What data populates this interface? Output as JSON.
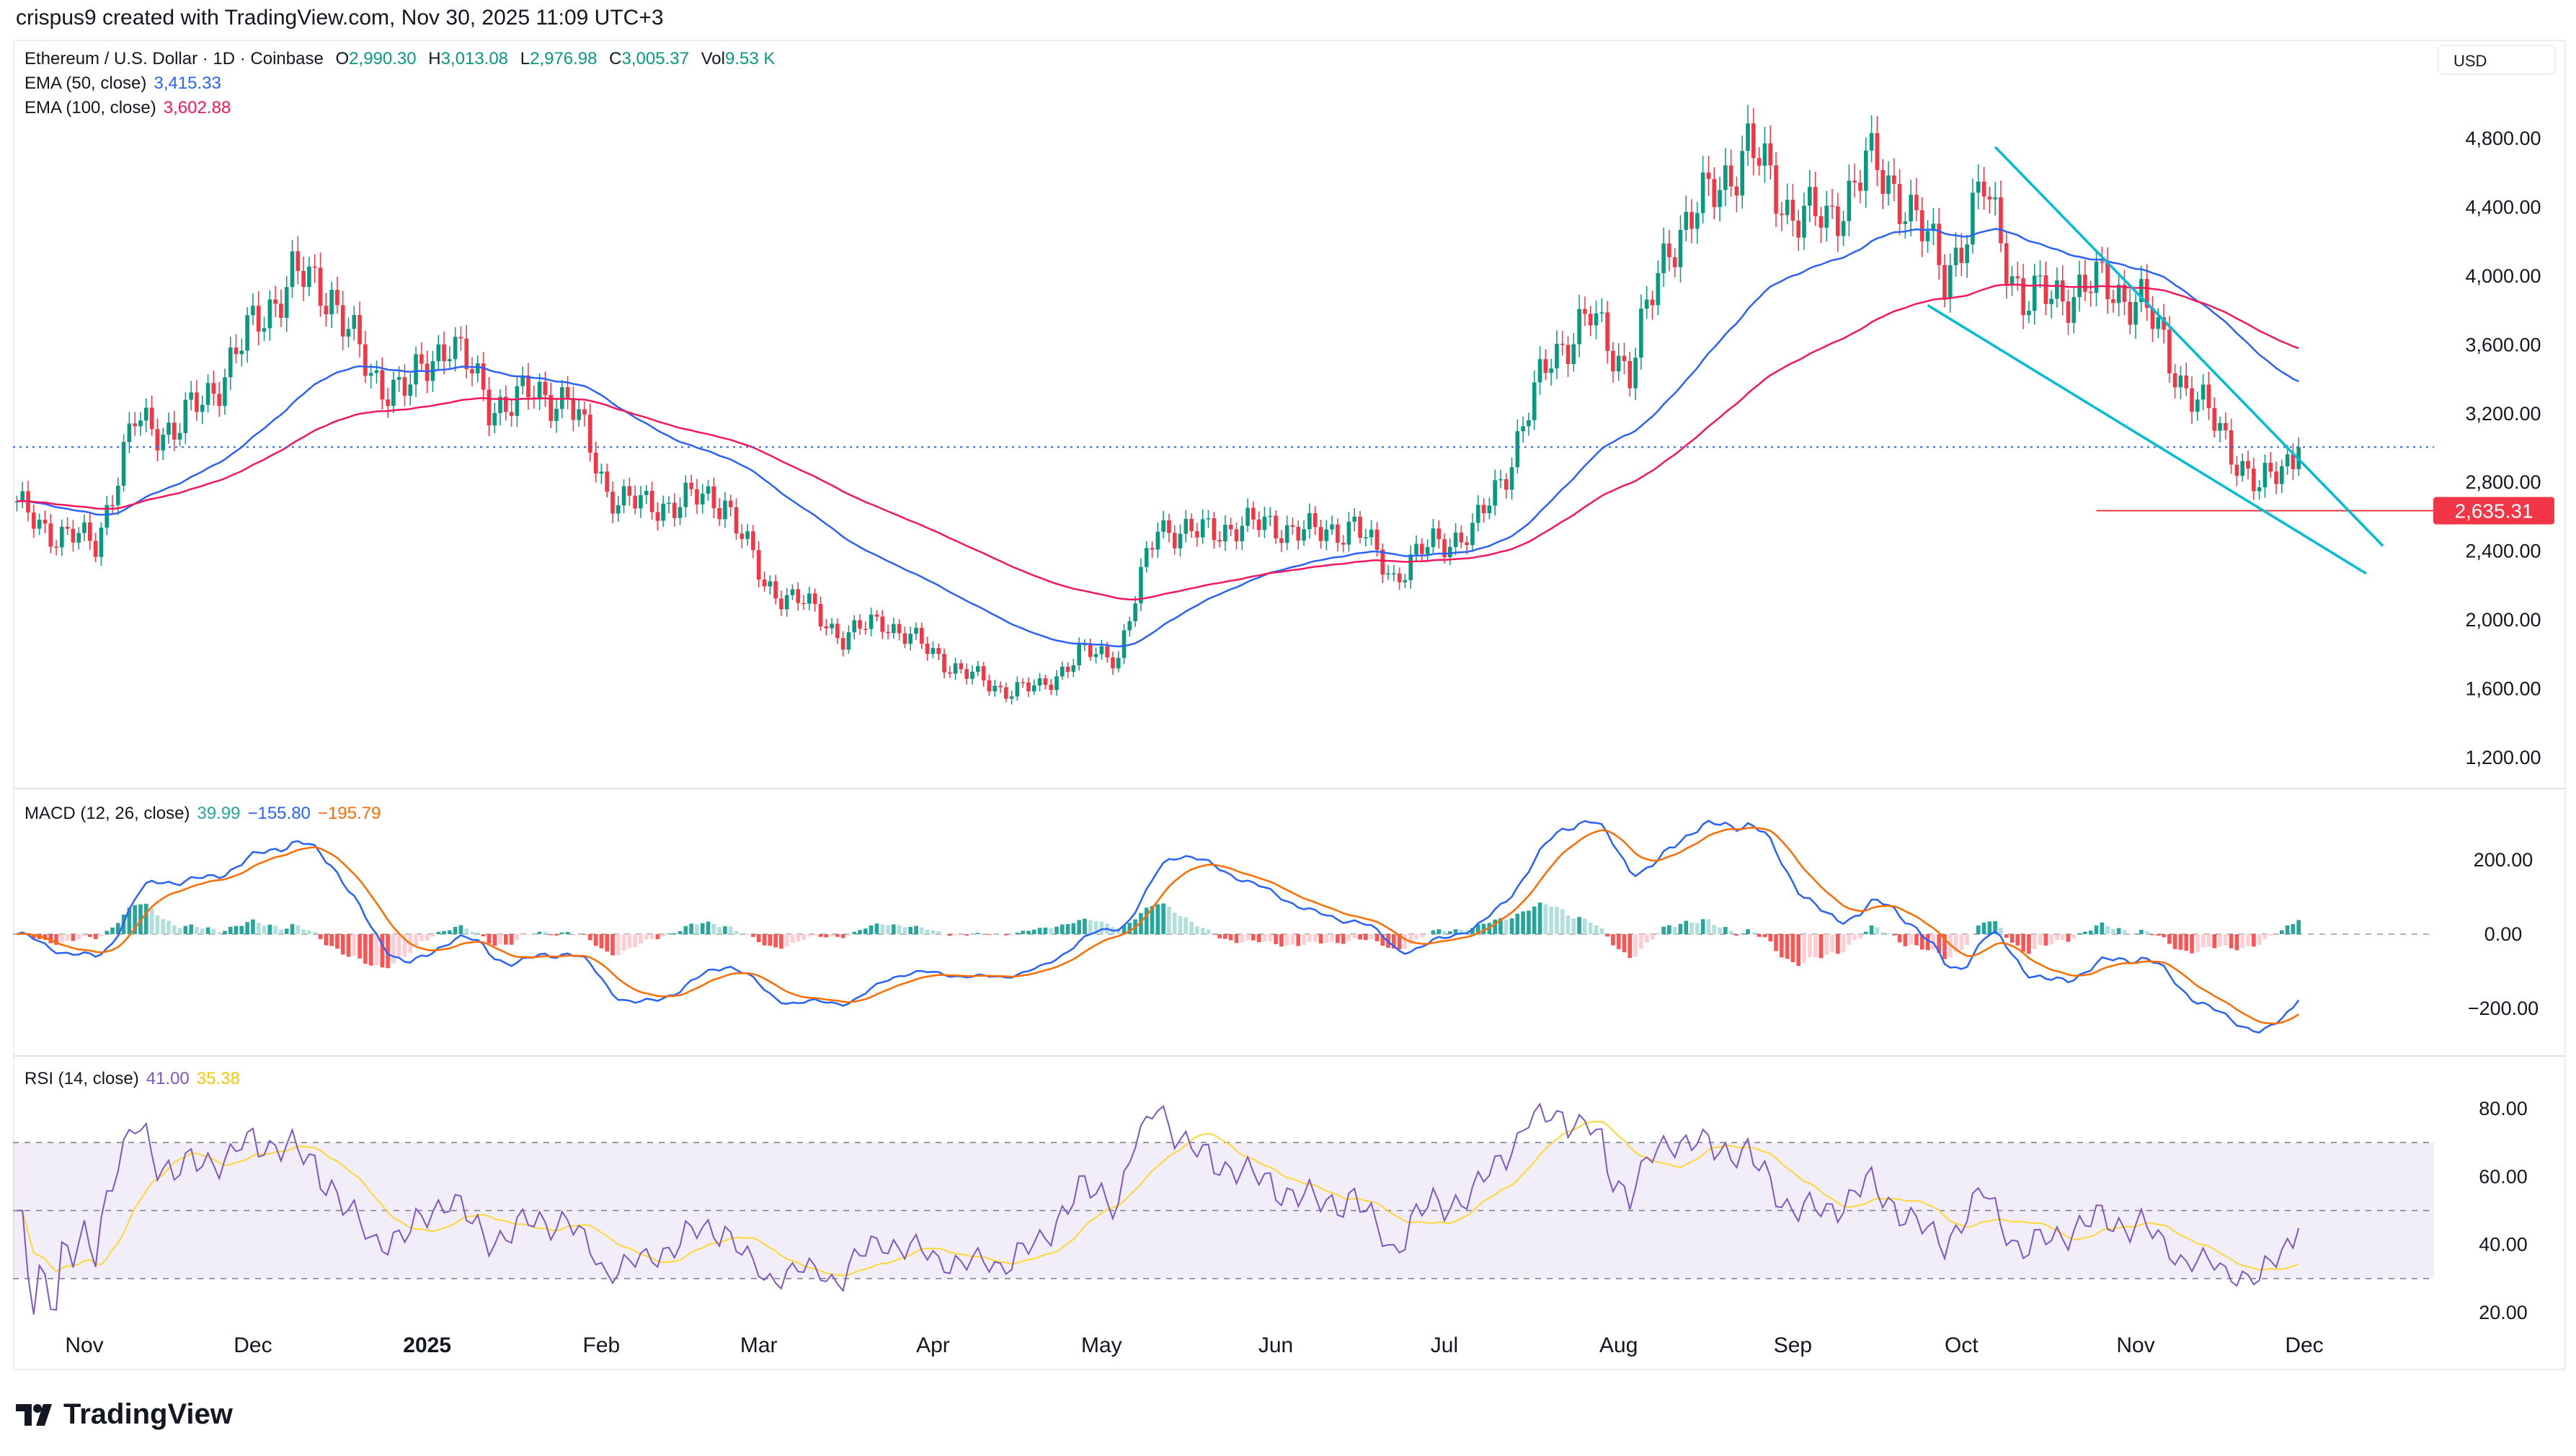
{
  "credit": "crispus9 created with TradingView.com, Nov 30, 2025 11:09 UTC+3",
  "legend": {
    "symbol": "Ethereum / U.S. Dollar · 1D · Coinbase",
    "o_label": "O",
    "o": "2,990.30",
    "h_label": "H",
    "h": "3,013.08",
    "l_label": "L",
    "l": "2,976.98",
    "c_label": "C",
    "c": "3,005.37",
    "vol_label": "Vol",
    "vol": "9.53 K",
    "ema50_label": "EMA (50, close)",
    "ema50": "3,415.33",
    "ema100_label": "EMA (100, close)",
    "ema100": "3,602.88",
    "macd_label": "MACD (12, 26, close)",
    "macd_hist": "39.99",
    "macd_line": "−155.80",
    "macd_signal": "−195.79",
    "rsi_label": "RSI (14, close)",
    "rsi": "41.00",
    "rsi_ma": "35.38"
  },
  "currency": "USD",
  "brand": "TradingView",
  "colors": {
    "up": "#089981",
    "down": "#f23645",
    "ema50": "#2962ff",
    "ema100": "#f7185b",
    "macd": "#2962ff",
    "signal": "#ff6d00",
    "rsi": "#7e57c2",
    "rsi_ma": "#fdd835",
    "trend": "#00bcd4",
    "level": "#f23645",
    "last": "#2962ff"
  },
  "chart_data": [
    {
      "type": "candlestick",
      "title": "Ethereum / U.S. Dollar · 1D · Coinbase",
      "x_ticks": [
        {
          "date": "2024-11-01",
          "label": "Nov"
        },
        {
          "date": "2024-12-01",
          "label": "Dec"
        },
        {
          "date": "2025-01-01",
          "label": "2025"
        },
        {
          "date": "2025-02-01",
          "label": "Feb"
        },
        {
          "date": "2025-03-01",
          "label": "Mar"
        },
        {
          "date": "2025-04-01",
          "label": "Apr"
        },
        {
          "date": "2025-05-01",
          "label": "May"
        },
        {
          "date": "2025-06-01",
          "label": "Jun"
        },
        {
          "date": "2025-07-01",
          "label": "Jul"
        },
        {
          "date": "2025-08-01",
          "label": "Aug"
        },
        {
          "date": "2025-09-01",
          "label": "Sep"
        },
        {
          "date": "2025-10-01",
          "label": "Oct"
        },
        {
          "date": "2025-11-01",
          "label": "Nov"
        },
        {
          "date": "2025-12-01",
          "label": "Dec"
        }
      ],
      "y_ticks": [
        "4,800.00",
        "4,400.00",
        "4,000.00",
        "3,600.00",
        "3,200.00",
        "2,800.00",
        "2,400.00",
        "2,000.00",
        "1,600.00",
        "1,200.00"
      ],
      "ylim": [
        1050,
        4950
      ],
      "weekly_closes": [
        [
          "2024-10-20",
          2650
        ],
        [
          "2024-10-27",
          2500
        ],
        [
          "2024-11-03",
          2450
        ],
        [
          "2024-11-10",
          3150
        ],
        [
          "2024-11-17",
          3100
        ],
        [
          "2024-11-24",
          3350
        ],
        [
          "2024-12-01",
          3700
        ],
        [
          "2024-12-08",
          4000
        ],
        [
          "2024-12-15",
          3900
        ],
        [
          "2024-12-22",
          3400
        ],
        [
          "2024-12-29",
          3350
        ],
        [
          "2025-01-05",
          3650
        ],
        [
          "2025-01-12",
          3250
        ],
        [
          "2025-01-19",
          3300
        ],
        [
          "2025-01-26",
          3300
        ],
        [
          "2025-02-02",
          2750
        ],
        [
          "2025-02-09",
          2650
        ],
        [
          "2025-02-16",
          2700
        ],
        [
          "2025-02-23",
          2700
        ],
        [
          "2025-03-02",
          2200
        ],
        [
          "2025-03-09",
          2100
        ],
        [
          "2025-03-16",
          1900
        ],
        [
          "2025-03-23",
          2000
        ],
        [
          "2025-03-30",
          1850
        ],
        [
          "2025-04-06",
          1700
        ],
        [
          "2025-04-13",
          1600
        ],
        [
          "2025-04-20",
          1600
        ],
        [
          "2025-04-27",
          1800
        ],
        [
          "2025-05-04",
          1800
        ],
        [
          "2025-05-11",
          2550
        ],
        [
          "2025-05-18",
          2500
        ],
        [
          "2025-05-25",
          2550
        ],
        [
          "2025-06-01",
          2550
        ],
        [
          "2025-06-08",
          2500
        ],
        [
          "2025-06-15",
          2550
        ],
        [
          "2025-06-22",
          2250
        ],
        [
          "2025-06-29",
          2450
        ],
        [
          "2025-07-06",
          2500
        ],
        [
          "2025-07-13",
          2950
        ],
        [
          "2025-07-20",
          3550
        ],
        [
          "2025-07-27",
          3750
        ],
        [
          "2025-08-03",
          3450
        ],
        [
          "2025-08-10",
          4200
        ],
        [
          "2025-08-17",
          4450
        ],
        [
          "2025-08-24",
          4750
        ],
        [
          "2025-08-31",
          4400
        ],
        [
          "2025-09-07",
          4300
        ],
        [
          "2025-09-14",
          4650
        ],
        [
          "2025-09-21",
          4450
        ],
        [
          "2025-09-28",
          4000
        ],
        [
          "2025-10-05",
          4500
        ],
        [
          "2025-10-12",
          3850
        ],
        [
          "2025-10-19",
          3900
        ],
        [
          "2025-10-26",
          3950
        ],
        [
          "2025-11-02",
          3850
        ],
        [
          "2025-11-09",
          3400
        ],
        [
          "2025-11-16",
          3100
        ],
        [
          "2025-11-23",
          2750
        ],
        [
          "2025-11-30",
          3005.37
        ]
      ],
      "last_close": 3005.37,
      "horizontal_level": {
        "value": 2635.31,
        "label": "2,635.31",
        "from": "2025-10-25"
      },
      "trendlines": [
        {
          "from": [
            "2025-10-07",
            4750
          ],
          "to": [
            "2025-12-15",
            2430
          ]
        },
        {
          "from": [
            "2025-09-25",
            3830
          ],
          "to": [
            "2025-12-12",
            2270
          ]
        }
      ],
      "series": [
        {
          "name": "EMA (50, close)",
          "period": 50
        },
        {
          "name": "EMA (100, close)",
          "period": 100
        }
      ]
    },
    {
      "type": "macd",
      "params": [
        12,
        26,
        9
      ],
      "y_ticks": [
        "200.00",
        "0.00",
        "−200.00"
      ],
      "ylim": [
        -300,
        340
      ]
    },
    {
      "type": "rsi",
      "period": 14,
      "y_ticks": [
        "80.00",
        "60.00",
        "40.00",
        "20.00"
      ],
      "bands": [
        70,
        50,
        30
      ],
      "ylim": [
        18,
        92
      ]
    }
  ]
}
